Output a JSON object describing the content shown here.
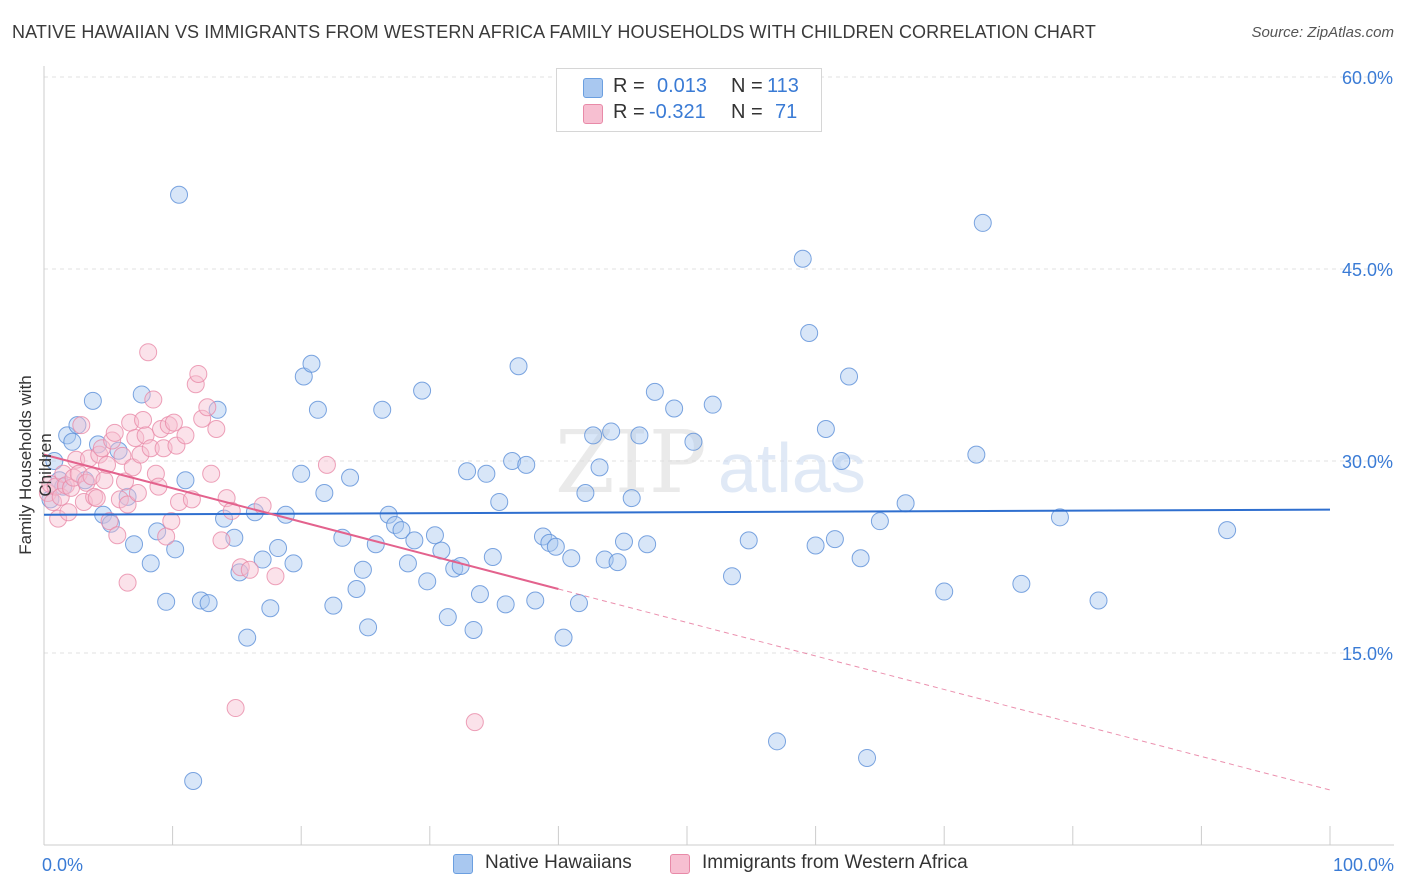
{
  "title": "NATIVE HAWAIIAN VS IMMIGRANTS FROM WESTERN AFRICA FAMILY HOUSEHOLDS WITH CHILDREN CORRELATION CHART",
  "source": "Source: ZipAtlas.com",
  "watermark": {
    "zip": "ZIP",
    "atlas": "atlas"
  },
  "legend": {
    "r_label": "R =",
    "n_label": "N =",
    "rows": [
      {
        "r": "0.013",
        "n": "113",
        "color": "#a9c8f0",
        "stroke": "#6b9fe0"
      },
      {
        "r": "-0.321",
        "n": "71",
        "color": "#f7bfd1",
        "stroke": "#e88aa8"
      }
    ]
  },
  "chart_data": {
    "type": "scatter",
    "title": "NATIVE HAWAIIAN VS IMMIGRANTS FROM WESTERN AFRICA FAMILY HOUSEHOLDS WITH CHILDREN CORRELATION CHART",
    "xlabel": "",
    "ylabel": "Family Households with Children",
    "xlim": [
      0,
      100
    ],
    "ylim": [
      0,
      62
    ],
    "x_tick_labels": [
      "0.0%",
      "100.0%"
    ],
    "y_ticks": [
      {
        "value": 15,
        "label": "15.0%"
      },
      {
        "value": 30,
        "label": "30.0%"
      },
      {
        "value": 45,
        "label": "45.0%"
      },
      {
        "value": 60,
        "label": "60.0%"
      }
    ],
    "grid": "horizontal dashed",
    "legend_position": "top-center",
    "series": [
      {
        "name": "Native Hawaiians",
        "color": "#a9c8f0",
        "stroke": "#5b8fd8",
        "trend": {
          "x": [
            0,
            100
          ],
          "y": [
            25.8,
            26.2
          ],
          "color": "#2f6fcf"
        },
        "points": [
          [
            0.5,
            27.0
          ],
          [
            0.8,
            30.0
          ],
          [
            1.2,
            28.5
          ],
          [
            1.5,
            28.0
          ],
          [
            1.8,
            32.0
          ],
          [
            2.2,
            31.5
          ],
          [
            2.6,
            32.8
          ],
          [
            3.2,
            28.5
          ],
          [
            3.8,
            34.7
          ],
          [
            4.2,
            31.3
          ],
          [
            4.6,
            25.8
          ],
          [
            5.2,
            25.1
          ],
          [
            5.8,
            30.8
          ],
          [
            6.5,
            27.2
          ],
          [
            7.0,
            23.5
          ],
          [
            7.6,
            35.2
          ],
          [
            8.3,
            22.0
          ],
          [
            8.8,
            24.5
          ],
          [
            9.5,
            19.0
          ],
          [
            10.2,
            23.1
          ],
          [
            10.5,
            50.8
          ],
          [
            11.0,
            28.5
          ],
          [
            11.6,
            5.0
          ],
          [
            12.2,
            19.1
          ],
          [
            12.8,
            18.9
          ],
          [
            13.5,
            34.0
          ],
          [
            14.0,
            25.5
          ],
          [
            14.8,
            24.0
          ],
          [
            15.2,
            21.3
          ],
          [
            15.8,
            16.2
          ],
          [
            16.4,
            26.0
          ],
          [
            17.0,
            22.3
          ],
          [
            17.6,
            18.5
          ],
          [
            18.2,
            23.2
          ],
          [
            18.8,
            25.8
          ],
          [
            19.4,
            22.0
          ],
          [
            20.0,
            29.0
          ],
          [
            20.2,
            36.6
          ],
          [
            20.8,
            37.6
          ],
          [
            21.3,
            34.0
          ],
          [
            21.8,
            27.5
          ],
          [
            22.5,
            18.7
          ],
          [
            23.2,
            24.0
          ],
          [
            23.8,
            28.7
          ],
          [
            24.3,
            20.0
          ],
          [
            24.8,
            21.5
          ],
          [
            25.2,
            17.0
          ],
          [
            25.8,
            23.5
          ],
          [
            26.3,
            34.0
          ],
          [
            26.8,
            25.8
          ],
          [
            27.3,
            25.0
          ],
          [
            27.8,
            24.6
          ],
          [
            28.3,
            22.0
          ],
          [
            28.8,
            23.8
          ],
          [
            29.4,
            35.5
          ],
          [
            29.8,
            20.6
          ],
          [
            30.4,
            24.2
          ],
          [
            30.9,
            23.0
          ],
          [
            31.4,
            17.8
          ],
          [
            31.9,
            21.6
          ],
          [
            32.4,
            21.8
          ],
          [
            32.9,
            29.2
          ],
          [
            33.4,
            16.8
          ],
          [
            33.9,
            19.6
          ],
          [
            34.4,
            29.0
          ],
          [
            34.9,
            22.5
          ],
          [
            35.4,
            26.8
          ],
          [
            35.9,
            18.8
          ],
          [
            36.4,
            30.0
          ],
          [
            36.9,
            37.4
          ],
          [
            37.5,
            29.7
          ],
          [
            38.2,
            19.1
          ],
          [
            38.8,
            24.1
          ],
          [
            39.3,
            23.6
          ],
          [
            39.8,
            23.3
          ],
          [
            40.4,
            16.2
          ],
          [
            41.0,
            22.4
          ],
          [
            41.6,
            18.9
          ],
          [
            42.1,
            27.5
          ],
          [
            42.7,
            32.0
          ],
          [
            43.2,
            29.5
          ],
          [
            43.6,
            22.3
          ],
          [
            44.1,
            32.3
          ],
          [
            44.6,
            22.1
          ],
          [
            45.1,
            23.7
          ],
          [
            45.7,
            27.1
          ],
          [
            46.3,
            32.0
          ],
          [
            46.9,
            23.5
          ],
          [
            47.5,
            35.4
          ],
          [
            49.0,
            34.1
          ],
          [
            50.5,
            31.5
          ],
          [
            52.0,
            34.4
          ],
          [
            53.5,
            21.0
          ],
          [
            54.8,
            23.8
          ],
          [
            57.0,
            8.1
          ],
          [
            59.0,
            45.8
          ],
          [
            59.5,
            40.0
          ],
          [
            60.0,
            23.4
          ],
          [
            60.8,
            32.5
          ],
          [
            61.5,
            23.9
          ],
          [
            62.0,
            30.0
          ],
          [
            62.6,
            36.6
          ],
          [
            63.5,
            22.4
          ],
          [
            65.0,
            25.3
          ],
          [
            67.0,
            26.7
          ],
          [
            70.0,
            19.8
          ],
          [
            72.5,
            30.5
          ],
          [
            73.0,
            48.6
          ],
          [
            76.0,
            20.4
          ],
          [
            79.0,
            25.6
          ],
          [
            82.0,
            19.1
          ],
          [
            92.0,
            24.6
          ],
          [
            64.0,
            6.8
          ]
        ]
      },
      {
        "name": "Immigrants from Western Africa",
        "color": "#f7bfd1",
        "stroke": "#e88aa8",
        "trend": {
          "x": [
            0,
            40
          ],
          "y": [
            30.5,
            20.0
          ],
          "color": "#e3628d",
          "dashed_to": [
            100,
            4.3
          ]
        },
        "points": [
          [
            0.3,
            27.5
          ],
          [
            0.5,
            28.2
          ],
          [
            0.7,
            26.8
          ],
          [
            0.9,
            28.0
          ],
          [
            1.1,
            25.5
          ],
          [
            1.3,
            27.2
          ],
          [
            1.5,
            29.0
          ],
          [
            1.7,
            28.1
          ],
          [
            1.9,
            26.0
          ],
          [
            2.1,
            27.9
          ],
          [
            2.3,
            28.7
          ],
          [
            2.5,
            30.1
          ],
          [
            2.7,
            29.0
          ],
          [
            2.9,
            32.8
          ],
          [
            3.1,
            26.8
          ],
          [
            3.3,
            28.3
          ],
          [
            3.5,
            30.2
          ],
          [
            3.7,
            28.8
          ],
          [
            3.9,
            27.2
          ],
          [
            4.1,
            27.1
          ],
          [
            4.3,
            30.5
          ],
          [
            4.5,
            31.0
          ],
          [
            4.7,
            28.5
          ],
          [
            4.9,
            29.7
          ],
          [
            5.1,
            25.3
          ],
          [
            5.3,
            31.6
          ],
          [
            5.5,
            32.2
          ],
          [
            5.7,
            24.2
          ],
          [
            5.9,
            27.0
          ],
          [
            6.1,
            30.4
          ],
          [
            6.3,
            28.4
          ],
          [
            6.5,
            26.6
          ],
          [
            6.7,
            33.0
          ],
          [
            6.9,
            29.5
          ],
          [
            7.1,
            31.8
          ],
          [
            7.3,
            27.5
          ],
          [
            7.5,
            30.5
          ],
          [
            7.7,
            33.2
          ],
          [
            7.9,
            32.0
          ],
          [
            8.1,
            38.5
          ],
          [
            8.3,
            31.0
          ],
          [
            8.5,
            34.8
          ],
          [
            8.7,
            29.0
          ],
          [
            8.9,
            28.0
          ],
          [
            9.1,
            32.5
          ],
          [
            9.3,
            31.0
          ],
          [
            9.5,
            24.1
          ],
          [
            9.7,
            32.8
          ],
          [
            9.9,
            25.3
          ],
          [
            10.1,
            33.0
          ],
          [
            10.3,
            31.2
          ],
          [
            10.5,
            26.8
          ],
          [
            11.0,
            32.0
          ],
          [
            11.5,
            27.0
          ],
          [
            11.8,
            36.0
          ],
          [
            12.0,
            36.8
          ],
          [
            12.3,
            33.3
          ],
          [
            12.7,
            34.2
          ],
          [
            13.0,
            29.0
          ],
          [
            13.4,
            32.5
          ],
          [
            13.8,
            23.8
          ],
          [
            14.2,
            27.1
          ],
          [
            14.6,
            26.1
          ],
          [
            14.9,
            10.7
          ],
          [
            15.3,
            21.7
          ],
          [
            16.0,
            21.5
          ],
          [
            17.0,
            26.5
          ],
          [
            18.0,
            21.0
          ],
          [
            22.0,
            29.7
          ],
          [
            33.5,
            9.6
          ],
          [
            6.5,
            20.5
          ]
        ]
      }
    ]
  }
}
